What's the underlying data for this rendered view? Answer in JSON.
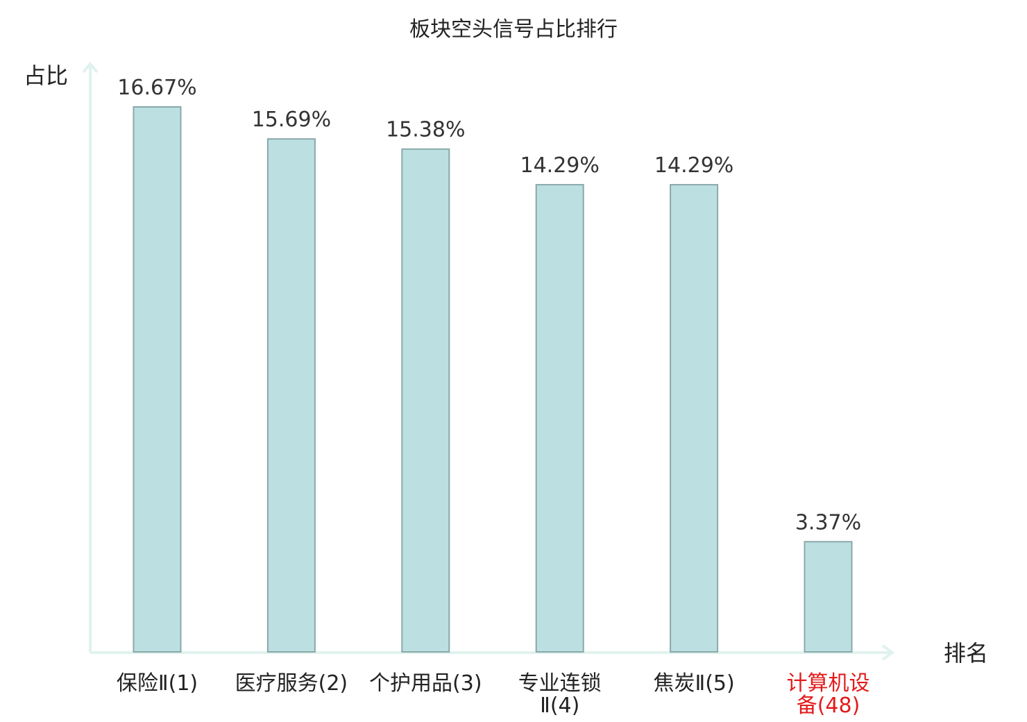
{
  "chart_data": {
    "type": "bar",
    "title": "板块空头信号占比排行",
    "ylabel": "占比",
    "xlabel": "排名",
    "ylim": [
      0,
      17.5
    ],
    "categories": [
      [
        "保险Ⅱ(1)"
      ],
      [
        "医疗服务(2)"
      ],
      [
        "个护用品(3)"
      ],
      [
        "专业连锁",
        "Ⅱ(4)"
      ],
      [
        "焦炭Ⅱ(5)"
      ],
      [
        "计算机设",
        "备(48)"
      ]
    ],
    "values": [
      16.67,
      15.69,
      15.38,
      14.29,
      14.29,
      3.37
    ],
    "value_labels": [
      "16.67%",
      "15.69%",
      "15.38%",
      "14.29%",
      "14.29%",
      "3.37%"
    ],
    "highlight_index": 5,
    "colors": {
      "bar_fill": "#bce0e2",
      "bar_stroke": "#8aa8aa",
      "axis": "#e0f2ef",
      "highlight_text": "#e31b1b"
    },
    "grid": false,
    "legend": "none"
  }
}
